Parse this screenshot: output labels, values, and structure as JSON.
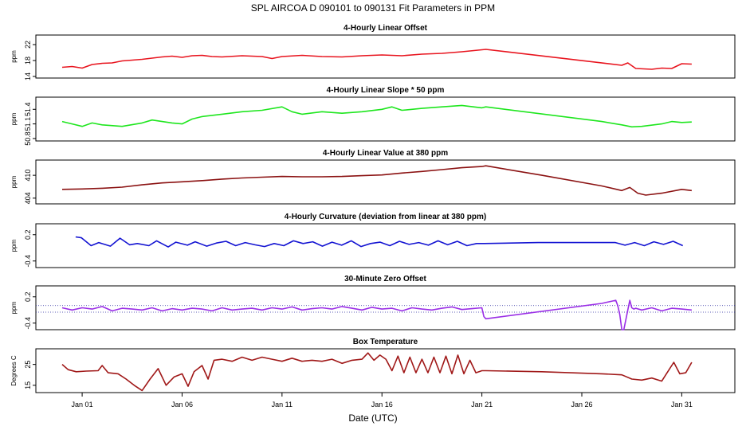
{
  "figure": {
    "title": "SPL   AIRCOA D   090101 to 090131   Fit Parameters in PPM",
    "xlabel": "Date (UTC)"
  },
  "chart_data": [
    {
      "type": "line",
      "title": "4-Hourly Linear Offset",
      "ylabel": "ppm",
      "color": "#e8141e",
      "ylim": [
        13.6,
        24.4
      ],
      "yticks": [
        14,
        18,
        22
      ],
      "ytick_labels": [
        "14",
        "18",
        "22"
      ],
      "xlim": [
        0.0,
        32.5
      ],
      "series": [
        {
          "x": [
            0.0,
            0.5,
            1.0,
            1.5,
            2.0,
            2.5,
            3.0,
            3.5,
            4.0,
            4.5,
            5.0,
            5.5,
            6.0,
            6.5,
            7.0,
            7.5,
            8.0,
            9.0,
            10.0,
            10.5,
            11.0,
            12.0,
            13.0,
            14.0,
            15.0,
            16.0,
            17.0,
            18.0,
            19.0,
            20.0,
            20.8,
            21.2,
            28.0,
            28.3,
            28.7,
            29.5,
            30.0,
            30.5,
            31.0,
            31.5
          ],
          "y": [
            16.3,
            16.5,
            16.1,
            17.0,
            17.3,
            17.4,
            17.9,
            18.1,
            18.3,
            18.6,
            18.9,
            19.1,
            18.8,
            19.2,
            19.3,
            19.0,
            18.9,
            19.2,
            19.0,
            18.5,
            19.0,
            19.3,
            19.0,
            18.9,
            19.2,
            19.4,
            19.2,
            19.6,
            19.8,
            20.2,
            20.6,
            20.8,
            16.8,
            17.4,
            16.0,
            15.8,
            16.1,
            16.0,
            17.2,
            17.1
          ]
        }
      ]
    },
    {
      "type": "line",
      "title": "4-Hourly Linear Slope * 50 ppm",
      "ylabel": "ppm",
      "color": "#1ee61e",
      "ylim": [
        50.75,
        51.65
      ],
      "yticks": [
        50.8,
        51.1,
        51.4
      ],
      "ytick_labels": [
        "50.8",
        "51.1",
        "51.4"
      ],
      "xlim": [
        0.0,
        32.5
      ],
      "series": [
        {
          "x": [
            0.0,
            0.5,
            1.0,
            1.5,
            2.0,
            3.0,
            4.0,
            4.5,
            5.0,
            5.5,
            6.0,
            6.5,
            7.0,
            8.0,
            9.0,
            10.0,
            11.0,
            11.5,
            12.0,
            13.0,
            14.0,
            15.0,
            16.0,
            16.5,
            17.0,
            18.0,
            19.0,
            20.0,
            21.0,
            21.2,
            27.0,
            28.0,
            28.5,
            29.0,
            30.0,
            30.5,
            31.0,
            31.5
          ],
          "y": [
            51.15,
            51.1,
            51.05,
            51.12,
            51.08,
            51.05,
            51.12,
            51.18,
            51.15,
            51.12,
            51.1,
            51.2,
            51.25,
            51.3,
            51.35,
            51.38,
            51.45,
            51.35,
            51.3,
            51.35,
            51.32,
            51.35,
            51.4,
            51.45,
            51.38,
            51.42,
            51.45,
            51.48,
            51.43,
            51.45,
            51.15,
            51.08,
            51.04,
            51.05,
            51.1,
            51.15,
            51.13,
            51.14
          ]
        }
      ]
    },
    {
      "type": "line",
      "title": "4-Hourly Linear Value at 380 ppm",
      "ylabel": "ppm",
      "color": "#8b1212",
      "ylim": [
        402.5,
        414.0
      ],
      "yticks": [
        404,
        410
      ],
      "ytick_labels": [
        "404",
        "410"
      ],
      "xlim": [
        0.0,
        32.5
      ],
      "series": [
        {
          "x": [
            0.0,
            1.0,
            2.0,
            3.0,
            4.0,
            5.0,
            6.0,
            7.0,
            8.0,
            9.0,
            10.0,
            11.0,
            12.0,
            13.0,
            14.0,
            15.0,
            16.0,
            17.0,
            18.0,
            19.0,
            20.0,
            21.0,
            21.2,
            24.0,
            27.0,
            28.0,
            28.4,
            28.8,
            29.2,
            30.0,
            31.0,
            31.5
          ],
          "y": [
            406.3,
            406.4,
            406.6,
            406.9,
            407.5,
            408.0,
            408.3,
            408.6,
            409.0,
            409.3,
            409.5,
            409.7,
            409.6,
            409.6,
            409.7,
            409.9,
            410.1,
            410.6,
            411.0,
            411.5,
            412.0,
            412.3,
            412.5,
            410.0,
            407.2,
            406.0,
            406.8,
            405.3,
            404.8,
            405.3,
            406.3,
            406.0
          ]
        }
      ]
    },
    {
      "type": "line",
      "title": "4-Hourly Curvature (deviation from linear at 380 ppm)",
      "ylabel": "ppm",
      "color": "#1414d2",
      "ylim": [
        -0.55,
        0.45
      ],
      "yticks": [
        -0.4,
        0.2
      ],
      "ytick_labels": [
        "-0.4",
        "0.2"
      ],
      "xlim": [
        -0.7,
        33.0
      ],
      "series": [
        {
          "x": [
            0.0,
            0.3,
            0.8,
            1.2,
            1.8,
            2.3,
            2.8,
            3.2,
            3.8,
            4.2,
            4.8,
            5.2,
            5.8,
            6.2,
            6.8,
            7.3,
            7.8,
            8.3,
            8.8,
            9.3,
            9.8,
            10.3,
            10.8,
            11.3,
            11.8,
            12.3,
            12.8,
            13.3,
            13.8,
            14.3,
            14.8,
            15.3,
            15.8,
            16.3,
            16.8,
            17.3,
            17.8,
            18.3,
            18.8,
            19.3,
            19.8,
            20.3,
            20.8,
            21.2,
            24.0,
            28.0,
            28.5,
            29.0,
            29.5,
            30.0,
            30.5,
            31.0,
            31.5
          ],
          "y": [
            0.15,
            0.13,
            -0.05,
            0.02,
            -0.06,
            0.12,
            -0.03,
            0.0,
            -0.05,
            0.06,
            -0.08,
            0.03,
            -0.04,
            0.04,
            -0.06,
            0.01,
            0.05,
            -0.05,
            0.02,
            -0.03,
            -0.07,
            0.0,
            -0.05,
            0.06,
            0.0,
            0.04,
            -0.06,
            0.03,
            -0.04,
            0.06,
            -0.07,
            0.0,
            0.03,
            -0.05,
            0.05,
            -0.02,
            0.02,
            -0.04,
            0.06,
            -0.03,
            0.05,
            -0.05,
            0.0,
            0.0,
            0.02,
            0.02,
            -0.04,
            0.02,
            -0.05,
            0.04,
            -0.02,
            0.05,
            -0.05
          ]
        }
      ]
    },
    {
      "type": "line",
      "title": "30-Minute Zero Offset",
      "ylabel": "ppm",
      "color": "#9a2ee6",
      "ylim": [
        -0.55,
        0.45
      ],
      "yticks": [
        -0.4,
        0.2
      ],
      "ytick_labels": [
        "-0.4",
        "0.2"
      ],
      "xlim": [
        0.0,
        32.5
      ],
      "reference_lines": [
        0.0,
        -0.15
      ],
      "series": [
        {
          "x": [
            0.0,
            0.5,
            1.0,
            1.5,
            2.0,
            2.5,
            3.0,
            3.5,
            4.0,
            4.5,
            5.0,
            5.5,
            6.0,
            6.5,
            7.0,
            7.5,
            8.0,
            8.5,
            9.0,
            9.5,
            10.0,
            10.5,
            11.0,
            11.5,
            12.0,
            12.5,
            13.0,
            13.5,
            14.0,
            14.5,
            15.0,
            15.5,
            16.0,
            16.5,
            17.0,
            17.5,
            18.0,
            18.5,
            19.0,
            19.5,
            20.0,
            20.5,
            21.0,
            21.1,
            21.2,
            27.0,
            27.7,
            27.8,
            27.9,
            28.0,
            28.1,
            28.3,
            28.4,
            28.5,
            28.6,
            28.7,
            29.0,
            29.5,
            30.0,
            30.5,
            31.0,
            31.5
          ],
          "y": [
            -0.05,
            -0.1,
            -0.05,
            -0.08,
            -0.02,
            -0.12,
            -0.06,
            -0.08,
            -0.1,
            -0.05,
            -0.12,
            -0.07,
            -0.1,
            -0.06,
            -0.08,
            -0.12,
            -0.05,
            -0.1,
            -0.08,
            -0.06,
            -0.1,
            -0.05,
            -0.08,
            -0.03,
            -0.1,
            -0.07,
            -0.05,
            -0.08,
            -0.02,
            -0.06,
            -0.1,
            -0.04,
            -0.08,
            -0.06,
            -0.12,
            -0.05,
            -0.08,
            -0.1,
            -0.06,
            -0.03,
            -0.09,
            -0.07,
            -0.05,
            -0.25,
            -0.3,
            0.05,
            0.12,
            0.0,
            -0.2,
            -0.55,
            -0.55,
            -0.1,
            0.12,
            -0.05,
            -0.08,
            -0.06,
            -0.1,
            -0.05,
            -0.12,
            -0.06,
            -0.08,
            -0.1
          ]
        }
      ]
    },
    {
      "type": "line",
      "title": "Box Temperature",
      "ylabel": "Degrees C",
      "color": "#a01818",
      "ylim": [
        11.5,
        32.5
      ],
      "yticks": [
        15,
        25
      ],
      "ytick_labels": [
        "15",
        "25"
      ],
      "xlim": [
        0.0,
        32.5
      ],
      "xticks": [
        1,
        6,
        11,
        16,
        21,
        26,
        31
      ],
      "xtick_labels": [
        "Jan 01",
        "Jan 06",
        "Jan 11",
        "Jan 16",
        "Jan 21",
        "Jan 26",
        "Jan 31"
      ],
      "series": [
        {
          "x": [
            0.0,
            0.3,
            0.7,
            1.2,
            1.8,
            2.0,
            2.3,
            2.8,
            3.2,
            3.6,
            4.0,
            4.4,
            4.8,
            5.2,
            5.6,
            6.0,
            6.3,
            6.6,
            7.0,
            7.3,
            7.6,
            8.0,
            8.5,
            9.0,
            9.5,
            10.0,
            10.5,
            11.0,
            11.5,
            12.0,
            12.5,
            13.0,
            13.5,
            14.0,
            14.5,
            15.0,
            15.3,
            15.6,
            15.9,
            16.2,
            16.5,
            16.8,
            17.1,
            17.4,
            17.7,
            18.0,
            18.3,
            18.6,
            18.9,
            19.2,
            19.5,
            19.8,
            20.1,
            20.4,
            20.7,
            21.0,
            21.2,
            24.0,
            27.0,
            28.0,
            28.5,
            29.0,
            29.5,
            30.0,
            30.3,
            30.6,
            30.9,
            31.2,
            31.5
          ],
          "y": [
            25.0,
            22.5,
            21.5,
            21.8,
            22.0,
            24.5,
            21.0,
            20.5,
            18.0,
            15.0,
            12.5,
            18.0,
            23.0,
            15.0,
            19.0,
            20.5,
            14.5,
            21.5,
            24.5,
            18.0,
            27.0,
            27.5,
            26.5,
            28.5,
            27.0,
            28.5,
            27.5,
            26.5,
            28.0,
            26.5,
            27.0,
            26.5,
            27.5,
            25.5,
            27.0,
            27.5,
            30.5,
            27.0,
            29.5,
            27.5,
            22.0,
            29.0,
            21.0,
            28.5,
            21.0,
            27.5,
            21.0,
            28.5,
            21.0,
            29.0,
            20.5,
            29.5,
            20.5,
            27.0,
            21.0,
            22.0,
            22.0,
            21.5,
            20.5,
            20.0,
            18.0,
            17.5,
            18.5,
            17.0,
            21.5,
            26.0,
            20.5,
            21.0,
            26.0
          ]
        }
      ]
    }
  ]
}
